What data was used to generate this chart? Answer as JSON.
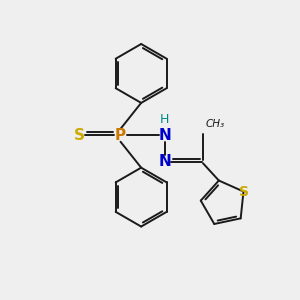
{
  "bg_color": "#efefef",
  "atom_colors": {
    "S_thio": "#ccaa00",
    "S_ph": "#ccaa00",
    "P": "#cc7700",
    "N": "#0000cc",
    "NH": "#008888",
    "bond": "#1a1a1a"
  },
  "figsize": [
    3.0,
    3.0
  ],
  "dpi": 100,
  "xlim": [
    0,
    10
  ],
  "ylim": [
    0,
    10
  ]
}
